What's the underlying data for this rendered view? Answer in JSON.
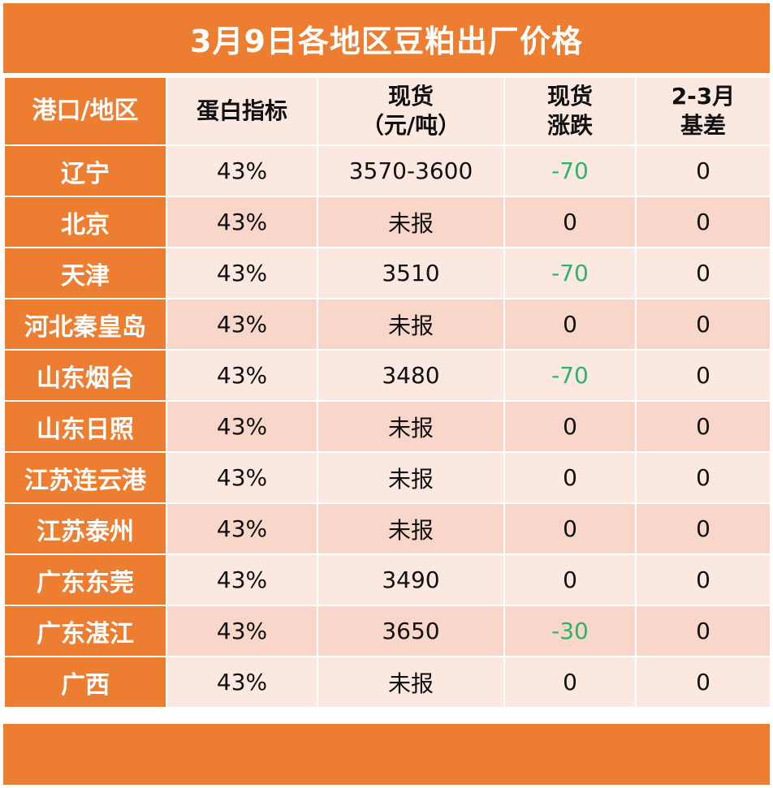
{
  "title": "3月9日各地区豆粕出厂价格",
  "headers": {
    "region": "港口/地区",
    "protein": "蛋白指标",
    "spot_line1": "现货",
    "spot_line2": "（元/吨）",
    "change_line1": "现货",
    "change_line2": "涨跌",
    "basis_line1": "2-3月",
    "basis_line2": "基差"
  },
  "rows": [
    {
      "region": "辽宁",
      "protein": "43%",
      "spot": "3570-3600",
      "change": "-70",
      "basis": "0"
    },
    {
      "region": "北京",
      "protein": "43%",
      "spot": "未报",
      "change": "0",
      "basis": "0"
    },
    {
      "region": "天津",
      "protein": "43%",
      "spot": "3510",
      "change": "-70",
      "basis": "0"
    },
    {
      "region": "河北秦皇岛",
      "protein": "43%",
      "spot": "未报",
      "change": "0",
      "basis": "0"
    },
    {
      "region": "山东烟台",
      "protein": "43%",
      "spot": "3480",
      "change": "-70",
      "basis": "0"
    },
    {
      "region": "山东日照",
      "protein": "43%",
      "spot": "未报",
      "change": "0",
      "basis": "0"
    },
    {
      "region": "江苏连云港",
      "protein": "43%",
      "spot": "未报",
      "change": "0",
      "basis": "0"
    },
    {
      "region": "江苏泰州",
      "protein": "43%",
      "spot": "未报",
      "change": "0",
      "basis": "0"
    },
    {
      "region": "广东东莞",
      "protein": "43%",
      "spot": "3490",
      "change": "0",
      "basis": "0"
    },
    {
      "region": "广东湛江",
      "protein": "43%",
      "spot": "3650",
      "change": "-30",
      "basis": "0"
    },
    {
      "region": "广西",
      "protein": "43%",
      "spot": "未报",
      "change": "0",
      "basis": "0"
    }
  ],
  "colors": {
    "accent": "#ED7D31",
    "row_light": "#FBE8E1",
    "row_dark": "#F8D6CA",
    "negative": "#2FB36A"
  }
}
